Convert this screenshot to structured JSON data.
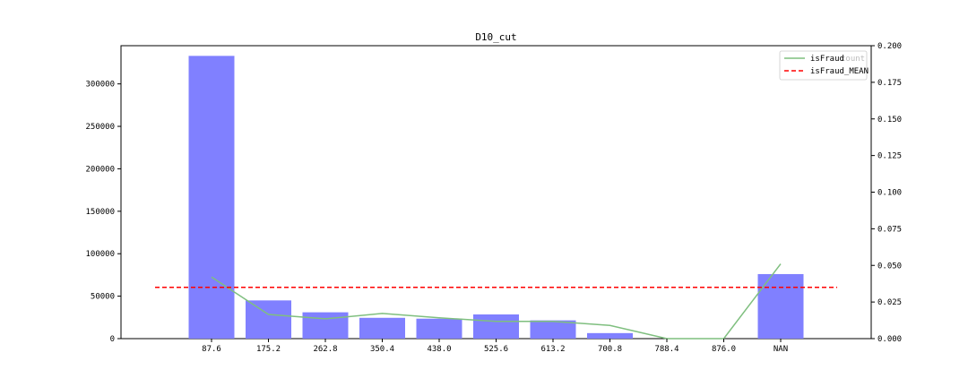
{
  "chart_data": {
    "type": "bar",
    "title": "D10_cut",
    "categories": [
      "87.6",
      "175.2",
      "262.8",
      "350.4",
      "438.0",
      "525.6",
      "613.2",
      "700.8",
      "788.4",
      "876.0",
      "NAN"
    ],
    "series": [
      {
        "type": "bar",
        "axis": "left",
        "color": "#8080ff",
        "values": [
          333000,
          45000,
          31000,
          24500,
          23500,
          28500,
          21500,
          6500,
          0,
          0,
          76000
        ]
      },
      {
        "name": "isFraud",
        "type": "line",
        "axis": "right",
        "color": "#7fbf7f",
        "values": [
          0.042,
          0.0165,
          0.0135,
          0.0172,
          0.0142,
          0.0118,
          0.0118,
          0.009,
          0.0,
          0.0,
          0.051
        ]
      },
      {
        "name": "isFraud_MEAN",
        "type": "hline",
        "axis": "right",
        "color": "#ff0000",
        "style": "dashed",
        "value": 0.035
      }
    ],
    "legend_overlap_text": "count",
    "ylim_left": [
      0,
      345000
    ],
    "yticks_left": [
      "0",
      "50000",
      "100000",
      "150000",
      "200000",
      "250000",
      "300000"
    ],
    "ylim_right": [
      0,
      0.2
    ],
    "yticks_right": [
      "0.000",
      "0.025",
      "0.050",
      "0.075",
      "0.100",
      "0.125",
      "0.150",
      "0.175",
      "0.200"
    ],
    "legend_position": "top-right",
    "grid": false
  }
}
